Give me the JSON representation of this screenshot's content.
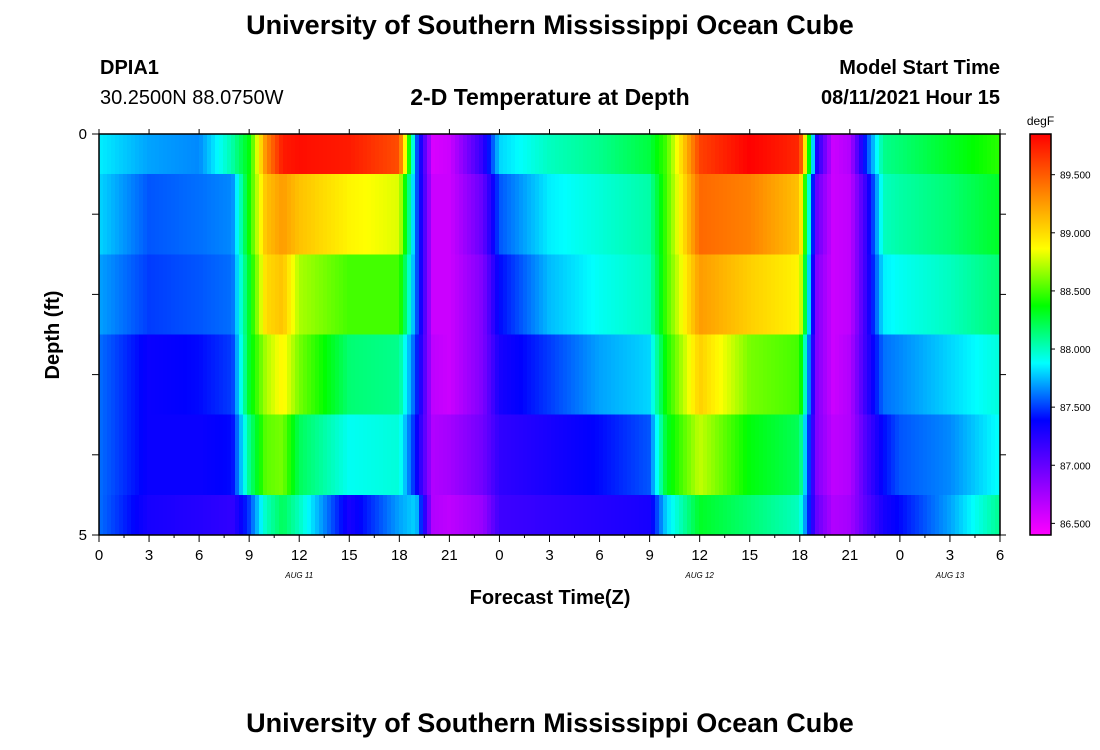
{
  "header": {
    "title": "University of Southern Mississippi Ocean Cube",
    "station": "DPIA1",
    "coords": "30.2500N  88.0750W",
    "plot_title": "2-D Temperature at Depth",
    "model_label": "Model Start Time",
    "model_time": "08/11/2021 Hour 15"
  },
  "footer": {
    "title": "University of Southern Mississippi Ocean Cube"
  },
  "chart_data": {
    "type": "heatmap",
    "title": "2-D Temperature at Depth",
    "xlabel": "Forecast Time(Z)",
    "ylabel": "Depth (ft)",
    "x_ticks": [
      "0",
      "3",
      "6",
      "9",
      "12",
      "15",
      "18",
      "21",
      "0",
      "3",
      "6",
      "9",
      "12",
      "15",
      "18",
      "21",
      "0",
      "3",
      "6"
    ],
    "day_labels": [
      {
        "label": "AUG  11",
        "tick_index": 4
      },
      {
        "label": "AUG  12",
        "tick_index": 12
      },
      {
        "label": "AUG  13",
        "tick_index": 17
      }
    ],
    "y_ticks": [
      "0",
      "5"
    ],
    "y_range": [
      0,
      5
    ],
    "colorbar": {
      "unit": "degF",
      "min": 86.4,
      "max": 89.85,
      "tick_labels": [
        "86.500",
        "87.000",
        "87.500",
        "88.000",
        "88.500",
        "89.000",
        "89.500"
      ],
      "tick_values": [
        86.5,
        87.0,
        87.5,
        88.0,
        88.5,
        89.0,
        89.5
      ],
      "colors": [
        "#ff00ff",
        "#8000ff",
        "#0000ff",
        "#00ffff",
        "#00ff00",
        "#ffff00",
        "#ff8000",
        "#ff0000"
      ]
    },
    "depth_bins": [
      "0-0.5",
      "0.5-1.5",
      "1.5-2.5",
      "2.5-3.5",
      "3.5-4.5",
      "4.5-5"
    ],
    "series": [
      {
        "hours": [
          0,
          3,
          6,
          8,
          9,
          10,
          11,
          12,
          15,
          18,
          19,
          20,
          21,
          23,
          24,
          27,
          30,
          33,
          34,
          36,
          39,
          42,
          43,
          44,
          45,
          46,
          47,
          48,
          51,
          54
        ],
        "values": [
          87.85,
          87.7,
          87.65,
          88.05,
          88.35,
          89.3,
          89.75,
          89.8,
          89.75,
          89.55,
          87.6,
          86.55,
          86.6,
          87.2,
          87.8,
          88.0,
          88.1,
          88.25,
          88.5,
          89.6,
          89.85,
          89.7,
          87.3,
          86.6,
          86.7,
          87.5,
          88.1,
          88.15,
          88.3,
          88.45
        ]
      },
      {
        "hours": [
          0,
          3,
          6,
          8,
          9,
          10,
          11,
          12,
          15,
          18,
          19,
          20,
          21,
          23,
          24,
          27,
          30,
          33,
          34,
          36,
          39,
          42,
          43,
          44,
          45,
          46,
          47,
          48,
          51,
          54
        ],
        "values": [
          87.8,
          87.55,
          87.6,
          87.65,
          88.4,
          89.1,
          89.25,
          89.1,
          88.9,
          88.8,
          87.6,
          86.6,
          86.6,
          87.0,
          87.55,
          87.85,
          87.95,
          88.05,
          88.5,
          89.45,
          89.35,
          89.1,
          87.0,
          86.6,
          86.65,
          87.2,
          88.0,
          88.05,
          88.15,
          88.3
        ]
      },
      {
        "hours": [
          0,
          3,
          6,
          8,
          9,
          10,
          11,
          12,
          15,
          18,
          19,
          20,
          21,
          23,
          24,
          27,
          30,
          33,
          34,
          36,
          39,
          42,
          43,
          44,
          45,
          46,
          47,
          48,
          51,
          54
        ],
        "values": [
          87.7,
          87.5,
          87.55,
          87.6,
          88.3,
          89.0,
          89.1,
          88.7,
          88.5,
          88.5,
          87.6,
          86.6,
          86.6,
          86.9,
          87.4,
          87.75,
          87.9,
          88.0,
          88.5,
          89.25,
          89.05,
          88.9,
          86.9,
          86.6,
          86.65,
          87.2,
          87.85,
          87.9,
          88.0,
          88.15
        ]
      },
      {
        "hours": [
          0,
          3,
          6,
          8,
          9,
          10,
          11,
          12,
          15,
          18,
          19,
          20,
          21,
          23,
          24,
          27,
          30,
          33,
          34,
          36,
          39,
          42,
          43,
          44,
          45,
          46,
          47,
          48,
          51,
          54
        ],
        "values": [
          87.6,
          87.35,
          87.4,
          87.5,
          88.3,
          88.7,
          88.9,
          88.6,
          88.15,
          88.1,
          87.5,
          86.65,
          86.6,
          86.9,
          87.3,
          87.5,
          87.7,
          87.8,
          88.4,
          89.05,
          88.6,
          88.5,
          86.9,
          86.6,
          86.7,
          87.2,
          87.6,
          87.65,
          87.8,
          87.95
        ]
      },
      {
        "hours": [
          0,
          3,
          6,
          8,
          9,
          10,
          11,
          12,
          15,
          18,
          19,
          20,
          21,
          23,
          24,
          27,
          30,
          33,
          34,
          36,
          39,
          42,
          43,
          44,
          45,
          46,
          47,
          48,
          51,
          54
        ],
        "values": [
          87.6,
          87.35,
          87.35,
          87.4,
          88.1,
          88.55,
          88.6,
          88.2,
          87.9,
          87.95,
          87.4,
          86.7,
          86.75,
          86.95,
          87.2,
          87.3,
          87.4,
          87.55,
          88.3,
          88.75,
          88.35,
          88.2,
          86.9,
          86.65,
          86.7,
          87.1,
          87.4,
          87.55,
          87.65,
          87.9
        ]
      },
      {
        "hours": [
          0,
          3,
          6,
          8,
          9,
          10,
          11,
          12,
          15,
          18,
          19,
          20,
          21,
          23,
          24,
          27,
          30,
          33,
          34,
          36,
          39,
          42,
          43,
          44,
          45,
          46,
          47,
          48,
          51,
          54
        ],
        "values": [
          87.6,
          87.3,
          87.25,
          87.2,
          87.5,
          88.0,
          88.2,
          88.0,
          87.3,
          87.7,
          87.8,
          86.7,
          86.65,
          86.8,
          87.15,
          87.2,
          87.25,
          87.3,
          87.8,
          88.3,
          88.15,
          88.0,
          87.0,
          86.7,
          86.75,
          87.05,
          87.3,
          87.4,
          87.7,
          88.1
        ]
      }
    ]
  }
}
